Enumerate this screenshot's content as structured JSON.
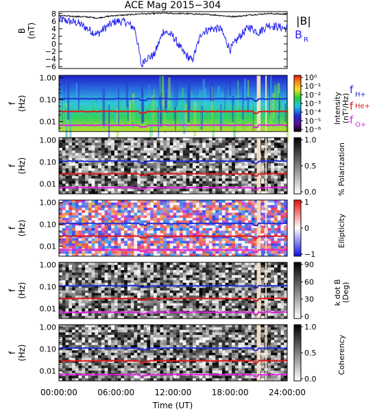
{
  "title": "ACE Mag 2015−304",
  "time_axis": {
    "label": "Time (UT)",
    "ticks": [
      "00:00:00",
      "06:00:00",
      "12:00:00",
      "18:00:00",
      "24:00:00"
    ],
    "range_hours": [
      0,
      24
    ]
  },
  "colors": {
    "B": "#000000",
    "BR": "#2222ee",
    "fH": "#1f2fd8",
    "fHe": "#e01818",
    "fO": "#e020e0",
    "gap": "#f3dcc0"
  },
  "data_gaps_hours": [
    [
      20.8,
      21.2
    ],
    [
      21.7,
      21.8
    ]
  ],
  "panels": {
    "mag": {
      "ylabel_line1": "B",
      "ylabel_line2": "(nT)",
      "yticks": [
        "8",
        "6",
        "4",
        "2",
        "0",
        "−2",
        "−4",
        "−6"
      ],
      "legend_B": "|B|",
      "legend_BR": "B",
      "legend_BR_sub": "R"
    },
    "intensity": {
      "ylabel_f": "f",
      "ylabel_unit": "(Hz)",
      "yticks": [
        "1.00",
        "0.10",
        "0.01"
      ],
      "cbar_label": "Intensity",
      "cbar_unit": "(nT²/Hz)",
      "cbar_ticks": [
        "10⁰",
        "10⁻¹",
        "10⁻²",
        "10⁻³",
        "10⁻⁴",
        "10⁻⁵",
        "10⁻⁶"
      ],
      "legend_fH": "f",
      "legend_fH_sub": "H+",
      "legend_fHe": "f",
      "legend_fHe_sub": "He+",
      "legend_fO": "f",
      "legend_fO_sub": "O+"
    },
    "polarization": {
      "ylabel_f": "f",
      "ylabel_unit": "(Hz)",
      "yticks": [
        "1.00",
        "0.10",
        "0.01"
      ],
      "cbar_label": "% Polarization",
      "cbar_ticks": [
        "1.0",
        "0.5",
        "0.0"
      ]
    },
    "ellipticity": {
      "ylabel_f": "f",
      "ylabel_unit": "(Hz)",
      "yticks": [
        "1.00",
        "0.10",
        "0.01"
      ],
      "cbar_label": "Ellipticity",
      "cbar_ticks": [
        "1",
        "0",
        "−1"
      ]
    },
    "kdotb": {
      "ylabel_f": "f",
      "ylabel_unit": "(Hz)",
      "yticks": [
        "1.00",
        "0.10",
        "0.01"
      ],
      "cbar_label": "k dot B",
      "cbar_unit": "(Deg)",
      "cbar_ticks": [
        "90",
        "60",
        "30",
        "0"
      ]
    },
    "coherency": {
      "ylabel_f": "f",
      "ylabel_unit": "(Hz)",
      "yticks": [
        "1.00",
        "0.10",
        "0.01"
      ],
      "cbar_label": "Coherency",
      "cbar_ticks": [
        "1.0",
        "0.5",
        "0.0"
      ]
    }
  },
  "chart_data": {
    "type": "line",
    "title": "ACE Mag 2015−304",
    "xlabel": "Time (UT)",
    "ylabel": "B (nT)",
    "ylim": [
      -6.5,
      8.5
    ],
    "x_hours": [
      0,
      1,
      2,
      3,
      4,
      5,
      6,
      7,
      8,
      8.7,
      9,
      10,
      11,
      12,
      13,
      14,
      15,
      16,
      17,
      18,
      19,
      20,
      21,
      22,
      23,
      24
    ],
    "series": [
      {
        "name": "|B|",
        "values": [
          7.5,
          7.3,
          7.2,
          7.1,
          6.8,
          7.2,
          7.5,
          7.6,
          7.8,
          8.0,
          7.9,
          8.0,
          8.1,
          8.0,
          8.0,
          7.9,
          7.8,
          7.7,
          7.5,
          7.2,
          7.3,
          7.6,
          7.8,
          8.0,
          7.9,
          7.8
        ]
      },
      {
        "name": "B",
        "values": [
          6.5,
          6.0,
          5.5,
          4.0,
          2.5,
          4.5,
          6.0,
          5.8,
          4.0,
          -6.0,
          -4.0,
          -3.0,
          3.5,
          2.0,
          -2.0,
          -4.5,
          3.0,
          4.0,
          4.0,
          -1.5,
          2.0,
          4.5,
          3.0,
          5.0,
          4.5,
          4.0
        ]
      }
    ],
    "spectrogram_panels": [
      "Intensity",
      "% Polarization",
      "Ellipticity",
      "k dot B",
      "Coherency"
    ],
    "gyrofrequency_lines_hz": {
      "f_H+": 0.11,
      "f_He+": 0.029,
      "f_O+": 0.0068
    }
  }
}
